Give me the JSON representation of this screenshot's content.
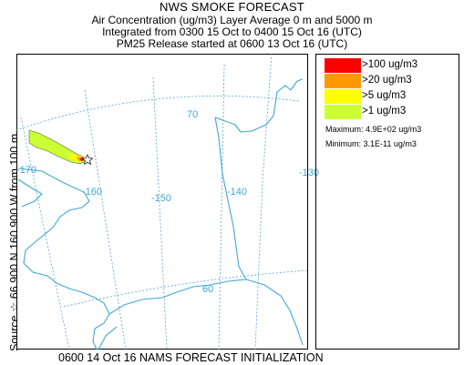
{
  "header": {
    "title": "NWS SMOKE FORECAST",
    "line2": "Air Concentration (ug/m3) Layer Average    0 m  and  5000 m",
    "line3": "Integrated from 0300 15 Oct to 0400 15 Oct 16 (UTC)",
    "line4": "PM25 Release started at 0600 13 Oct 16 (UTC)"
  },
  "side_label": "Source ☆ 66.900  N 160.900  W    from    100 m",
  "map": {
    "longitude_labels": [
      "-170",
      "-160",
      "-150",
      "-140",
      "-130"
    ],
    "latitude_labels": [
      "70",
      "60"
    ],
    "graticule_color": "#5ba3d0",
    "coast_color": "#3fa7d6"
  },
  "legend": {
    "items": [
      {
        "label": ">100 ug/m3",
        "color": "#ff0000"
      },
      {
        "label": ">20 ug/m3",
        "color": "#ff9900"
      },
      {
        "label": ">5 ug/m3",
        "color": "#ffff00"
      },
      {
        "label": ">1 ug/m3",
        "color": "#ccff33"
      }
    ],
    "maximum": "Maximum: 4.9E+02 ug/m3",
    "minimum": "Minimum: 3.1E-11 ug/m3"
  },
  "footer": "0600 14 Oct 16 NAMS FORECAST INITIALIZATION"
}
